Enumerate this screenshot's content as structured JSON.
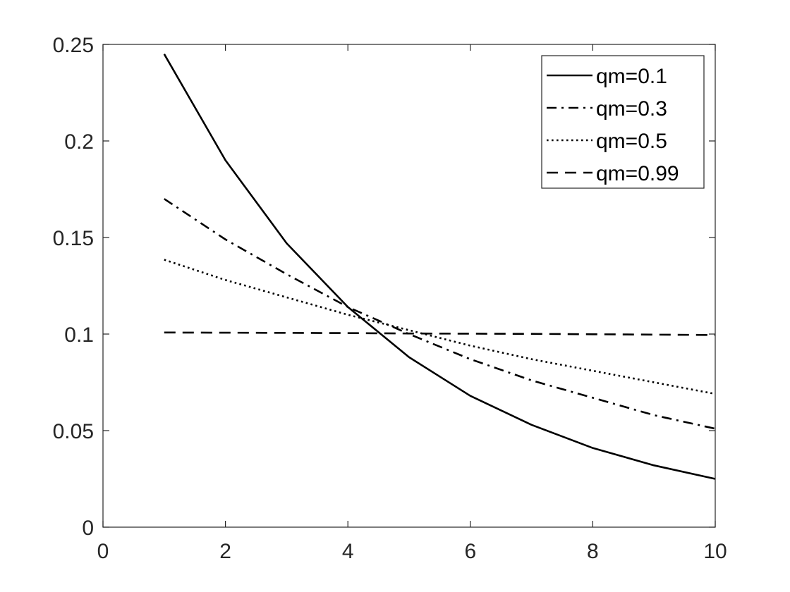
{
  "chart_data": {
    "type": "line",
    "title": "",
    "xlabel": "",
    "ylabel": "",
    "xlim": [
      0,
      10
    ],
    "ylim": [
      0,
      0.25
    ],
    "x_ticks": [
      "0",
      "2",
      "4",
      "6",
      "8",
      "10"
    ],
    "y_ticks": [
      "0",
      "0.05",
      "0.1",
      "0.15",
      "0.2",
      "0.25"
    ],
    "grid": false,
    "legend_position": "top-right",
    "x": [
      1,
      2,
      3,
      4,
      5,
      6,
      7,
      8,
      9,
      10
    ],
    "series": [
      {
        "name": "qm=0.1",
        "style": "solid",
        "color": "#000000",
        "values": [
          0.245,
          0.19,
          0.147,
          0.114,
          0.088,
          0.068,
          0.053,
          0.041,
          0.032,
          0.025
        ]
      },
      {
        "name": "qm=0.3",
        "style": "dashdot",
        "color": "#000000",
        "values": [
          0.17,
          0.149,
          0.131,
          0.114,
          0.1,
          0.087,
          0.076,
          0.067,
          0.058,
          0.051
        ]
      },
      {
        "name": "qm=0.5",
        "style": "dotted",
        "color": "#000000",
        "values": [
          0.1385,
          0.128,
          0.119,
          0.11,
          0.102,
          0.094,
          0.087,
          0.081,
          0.075,
          0.069
        ]
      },
      {
        "name": "qm=0.99",
        "style": "dashed",
        "color": "#000000",
        "values": [
          0.1008,
          0.1007,
          0.1006,
          0.1005,
          0.1003,
          0.1002,
          0.1001,
          0.0999,
          0.0997,
          0.0995
        ]
      }
    ]
  }
}
